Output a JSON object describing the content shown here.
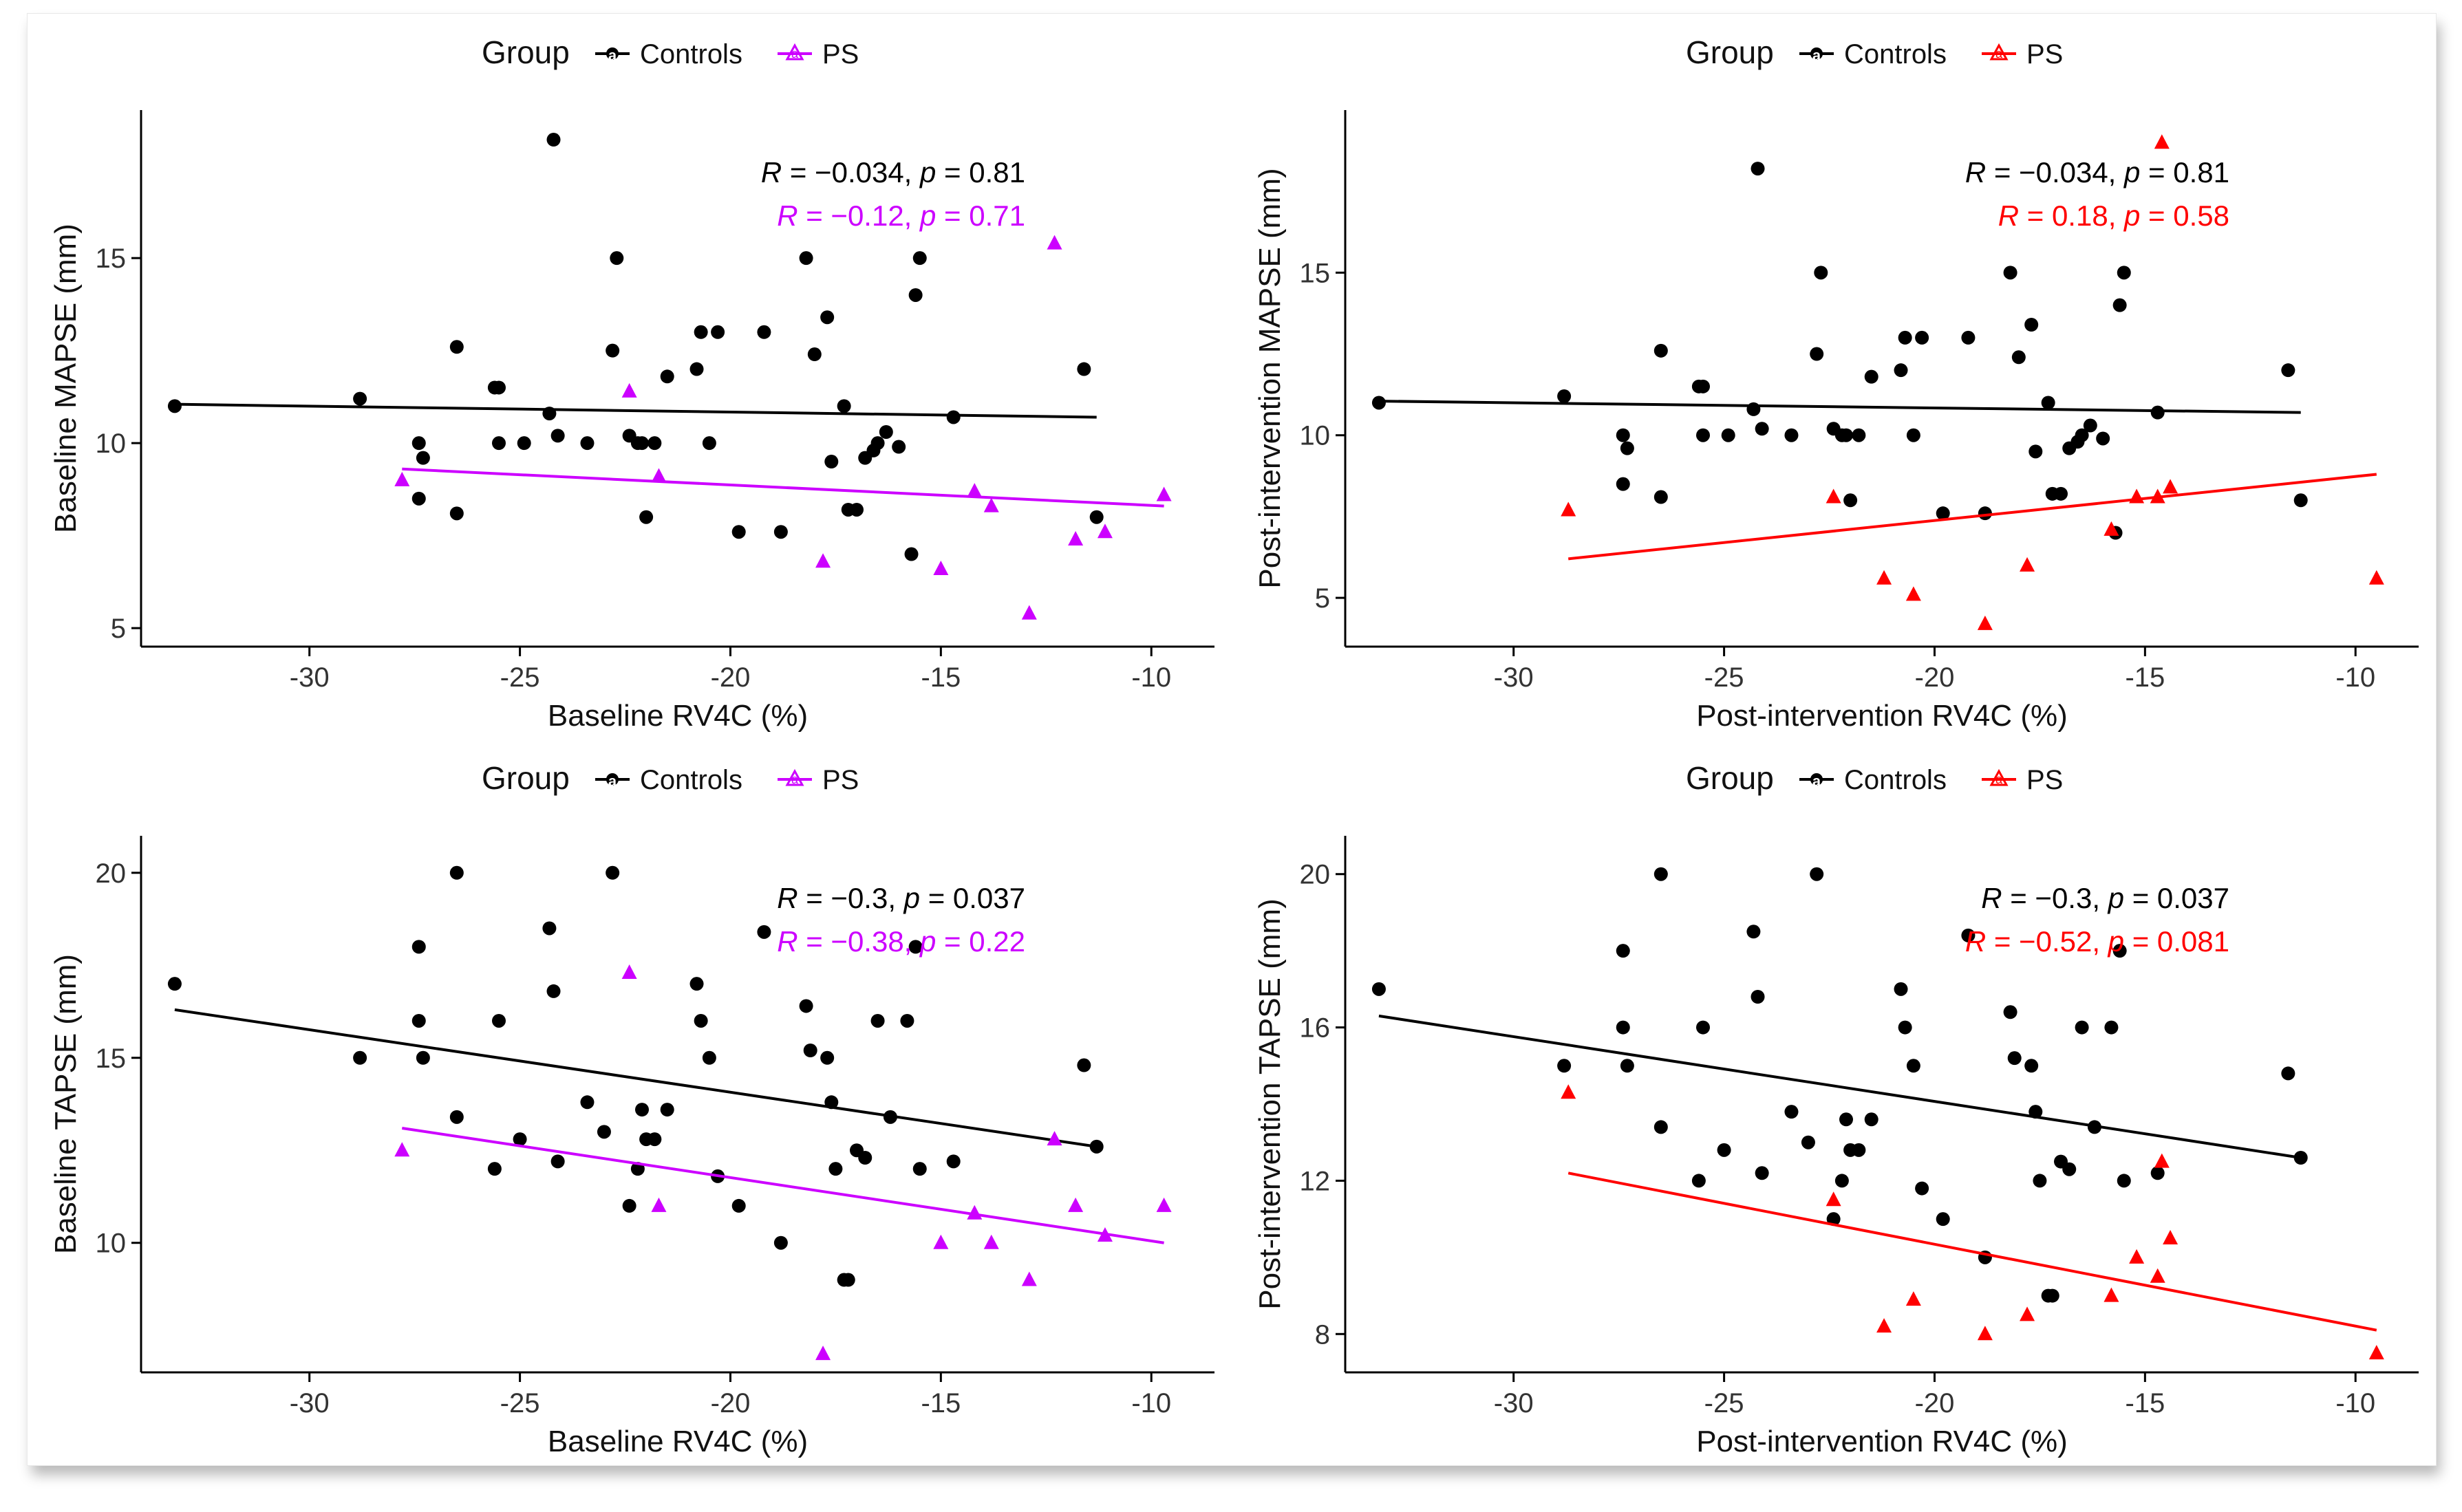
{
  "colors": {
    "controls": "#000000",
    "ps_baseline": "#cc00ff",
    "ps_post": "#ff0000"
  },
  "chart_data": [
    {
      "type": "scatter",
      "xlabel": "Baseline RV4C (%)",
      "ylabel": "Baseline MAPSE (mm)",
      "xlim": [
        -34,
        -8.5
      ],
      "ylim": [
        4.5,
        19
      ],
      "xticks": [
        -30,
        -25,
        -20,
        -15,
        -10
      ],
      "yticks": [
        5,
        10,
        15
      ],
      "legend": {
        "title": "Group",
        "entries": [
          "Controls",
          "PS"
        ],
        "position": "top"
      },
      "series": [
        {
          "name": "Controls",
          "color": "#000000",
          "marker": "circle",
          "x": [
            -33.2,
            -28.8,
            -27.4,
            -27.3,
            -27.4,
            -26.5,
            -26.5,
            -25.6,
            -25.5,
            -25.5,
            -24.9,
            -24.3,
            -24.2,
            -24.1,
            -23.4,
            -22.8,
            -22.7,
            -22.4,
            -22.2,
            -22.1,
            -22.0,
            -21.8,
            -21.5,
            -20.8,
            -20.7,
            -20.5,
            -20.3,
            -19.8,
            -19.2,
            -18.8,
            -18.2,
            -18.0,
            -17.7,
            -17.6,
            -17.3,
            -17.2,
            -17.0,
            -16.8,
            -16.6,
            -16.5,
            -16.3,
            -16.0,
            -15.7,
            -15.6,
            -15.5,
            -14.7,
            -11.6,
            -11.3
          ],
          "y": [
            11.0,
            11.2,
            10.0,
            9.6,
            8.5,
            12.6,
            8.1,
            11.5,
            11.5,
            10.0,
            10.0,
            10.8,
            18.2,
            10.2,
            10.0,
            12.5,
            15.0,
            10.2,
            10.0,
            10.0,
            8.0,
            10.0,
            11.8,
            12.0,
            13.0,
            10.0,
            13.0,
            7.6,
            13.0,
            7.6,
            15.0,
            12.4,
            13.4,
            9.5,
            11.0,
            8.2,
            8.2,
            9.6,
            9.8,
            10.0,
            10.3,
            9.9,
            7.0,
            14.0,
            15.0,
            10.7,
            12.0,
            8.0
          ],
          "fit": {
            "x": [
              -33.2,
              -11.3
            ],
            "y": [
              11.05,
              10.7
            ]
          }
        },
        {
          "name": "PS",
          "color": "#cc00ff",
          "marker": "triangle",
          "x": [
            -27.8,
            -22.4,
            -21.7,
            -17.8,
            -15.0,
            -14.2,
            -13.8,
            -12.9,
            -12.3,
            -11.8,
            -11.1,
            -9.7
          ],
          "y": [
            9.0,
            11.4,
            9.1,
            6.8,
            6.6,
            8.7,
            8.3,
            5.4,
            15.4,
            7.4,
            7.6,
            8.6
          ],
          "fit": {
            "x": [
              -27.8,
              -9.7
            ],
            "y": [
              9.3,
              8.3
            ]
          }
        }
      ],
      "annotations": [
        {
          "r": "−0.034",
          "p": "0.81",
          "color": "#000000"
        },
        {
          "r": "−0.12",
          "p": "0.71",
          "color": "#cc00ff"
        }
      ]
    },
    {
      "type": "scatter",
      "xlabel": "Post-intervention RV4C (%)",
      "ylabel": "Post-intervention MAPSE (mm)",
      "xlim": [
        -34,
        -8.5
      ],
      "ylim": [
        3.5,
        20
      ],
      "xticks": [
        -30,
        -25,
        -20,
        -15,
        -10
      ],
      "yticks": [
        5,
        10,
        15
      ],
      "legend": {
        "title": "Group",
        "entries": [
          "Controls",
          "PS"
        ],
        "position": "top"
      },
      "series": [
        {
          "name": "Controls",
          "color": "#000000",
          "marker": "circle",
          "x": [
            -33.2,
            -28.8,
            -27.4,
            -27.3,
            -27.4,
            -26.5,
            -26.5,
            -25.6,
            -25.5,
            -25.5,
            -24.9,
            -24.3,
            -24.2,
            -24.1,
            -23.4,
            -22.8,
            -22.7,
            -22.4,
            -22.2,
            -22.1,
            -22.0,
            -21.8,
            -21.5,
            -20.8,
            -20.7,
            -20.5,
            -20.3,
            -19.8,
            -19.2,
            -18.8,
            -18.2,
            -18.0,
            -17.7,
            -17.6,
            -17.3,
            -17.2,
            -17.0,
            -16.8,
            -16.6,
            -16.5,
            -16.3,
            -16.0,
            -15.7,
            -15.6,
            -15.5,
            -14.7,
            -11.6,
            -11.3
          ],
          "y": [
            11.0,
            11.2,
            10.0,
            9.6,
            8.5,
            12.6,
            8.1,
            11.5,
            11.5,
            10.0,
            10.0,
            10.8,
            18.2,
            10.2,
            10.0,
            12.5,
            15.0,
            10.2,
            10.0,
            10.0,
            8.0,
            10.0,
            11.8,
            12.0,
            13.0,
            10.0,
            13.0,
            7.6,
            13.0,
            7.6,
            15.0,
            12.4,
            13.4,
            9.5,
            11.0,
            8.2,
            8.2,
            9.6,
            9.8,
            10.0,
            10.3,
            9.9,
            7.0,
            14.0,
            15.0,
            10.7,
            12.0,
            8.0
          ],
          "fit": {
            "x": [
              -33.2,
              -11.3
            ],
            "y": [
              11.05,
              10.7
            ]
          }
        },
        {
          "name": "PS",
          "color": "#ff0000",
          "marker": "triangle",
          "x": [
            -28.7,
            -22.4,
            -21.2,
            -20.5,
            -18.8,
            -17.8,
            -15.8,
            -15.2,
            -14.7,
            -14.6,
            -14.4,
            -9.5
          ],
          "y": [
            7.7,
            8.1,
            5.6,
            5.1,
            4.2,
            6.0,
            7.1,
            8.1,
            8.1,
            19.0,
            8.4,
            5.6
          ],
          "fit": {
            "x": [
              -28.7,
              -9.5
            ],
            "y": [
              6.2,
              8.8
            ]
          }
        }
      ],
      "annotations": [
        {
          "r": "−0.034",
          "p": "0.81",
          "color": "#000000"
        },
        {
          "r": "0.18",
          "p": "0.58",
          "color": "#ff0000"
        }
      ]
    },
    {
      "type": "scatter",
      "xlabel": "Baseline RV4C (%)",
      "ylabel": "Baseline TAPSE (mm)",
      "xlim": [
        -34,
        -8.5
      ],
      "ylim": [
        6.5,
        21
      ],
      "xticks": [
        -30,
        -25,
        -20,
        -15,
        -10
      ],
      "yticks": [
        10,
        15,
        20
      ],
      "legend": {
        "title": "Group",
        "entries": [
          "Controls",
          "PS"
        ],
        "position": "top"
      },
      "series": [
        {
          "name": "Controls",
          "color": "#000000",
          "marker": "circle",
          "x": [
            -33.2,
            -28.8,
            -27.4,
            -27.4,
            -27.3,
            -26.5,
            -26.5,
            -25.6,
            -25.5,
            -25.0,
            -24.3,
            -24.2,
            -24.1,
            -23.4,
            -23.0,
            -22.8,
            -22.4,
            -22.2,
            -22.1,
            -22.0,
            -21.8,
            -21.5,
            -20.8,
            -20.7,
            -20.5,
            -20.3,
            -19.8,
            -19.2,
            -18.8,
            -18.2,
            -18.1,
            -17.7,
            -17.6,
            -17.5,
            -17.3,
            -17.2,
            -17.0,
            -16.8,
            -16.5,
            -16.2,
            -15.8,
            -15.5,
            -15.6,
            -14.7,
            -11.6,
            -11.3
          ],
          "y": [
            17.0,
            15.0,
            18.0,
            16.0,
            15.0,
            20.0,
            13.4,
            12.0,
            16.0,
            12.8,
            18.5,
            16.8,
            12.2,
            13.8,
            13.0,
            20.0,
            11.0,
            12.0,
            13.6,
            12.8,
            12.8,
            13.6,
            17.0,
            16.0,
            15.0,
            11.8,
            11.0,
            18.4,
            10.0,
            16.4,
            15.2,
            15.0,
            13.8,
            12.0,
            9.0,
            9.0,
            12.5,
            12.3,
            16.0,
            13.4,
            16.0,
            12.0,
            18.0,
            12.2,
            14.8,
            12.6
          ],
          "fit": {
            "x": [
              -33.2,
              -11.3
            ],
            "y": [
              16.3,
              12.6
            ]
          }
        },
        {
          "name": "PS",
          "color": "#cc00ff",
          "marker": "triangle",
          "x": [
            -27.8,
            -22.4,
            -21.7,
            -17.8,
            -15.0,
            -14.2,
            -13.8,
            -12.9,
            -12.3,
            -11.8,
            -11.1,
            -9.7
          ],
          "y": [
            12.5,
            17.3,
            11.0,
            7.0,
            10.0,
            10.8,
            10.0,
            9.0,
            12.8,
            11.0,
            10.2,
            11.0
          ],
          "fit": {
            "x": [
              -27.8,
              -9.7
            ],
            "y": [
              13.1,
              10.0
            ]
          }
        }
      ],
      "annotations": [
        {
          "r": "−0.3",
          "p": "0.037",
          "color": "#000000"
        },
        {
          "r": "−0.38",
          "p": "0.22",
          "color": "#cc00ff"
        }
      ]
    },
    {
      "type": "scatter",
      "xlabel": "Post-intervention RV4C (%)",
      "ylabel": "Post-intervention TAPSE (mm)",
      "xlim": [
        -34,
        -8.5
      ],
      "ylim": [
        7,
        21
      ],
      "xticks": [
        -30,
        -25,
        -20,
        -15,
        -10
      ],
      "yticks": [
        8,
        12,
        16,
        20
      ],
      "legend": {
        "title": "Group",
        "entries": [
          "Controls",
          "PS"
        ],
        "position": "top"
      },
      "series": [
        {
          "name": "Controls",
          "color": "#000000",
          "marker": "circle",
          "x": [
            -33.2,
            -28.8,
            -27.4,
            -27.4,
            -27.3,
            -26.5,
            -26.5,
            -25.6,
            -25.5,
            -25.0,
            -24.3,
            -24.2,
            -24.1,
            -23.4,
            -23.0,
            -22.8,
            -22.4,
            -22.2,
            -22.1,
            -22.0,
            -21.8,
            -21.5,
            -20.8,
            -20.7,
            -20.5,
            -20.3,
            -19.8,
            -19.2,
            -18.8,
            -18.2,
            -18.1,
            -17.7,
            -17.6,
            -17.5,
            -17.3,
            -17.2,
            -17.0,
            -16.8,
            -16.5,
            -16.2,
            -15.8,
            -15.5,
            -15.6,
            -14.7,
            -11.6,
            -11.3
          ],
          "y": [
            17.0,
            15.0,
            18.0,
            16.0,
            15.0,
            20.0,
            13.4,
            12.0,
            16.0,
            12.8,
            18.5,
            16.8,
            12.2,
            13.8,
            13.0,
            20.0,
            11.0,
            12.0,
            13.6,
            12.8,
            12.8,
            13.6,
            17.0,
            16.0,
            15.0,
            11.8,
            11.0,
            18.4,
            10.0,
            16.4,
            15.2,
            15.0,
            13.8,
            12.0,
            9.0,
            9.0,
            12.5,
            12.3,
            16.0,
            13.4,
            16.0,
            12.0,
            18.0,
            12.2,
            14.8,
            12.6
          ],
          "fit": {
            "x": [
              -33.2,
              -11.3
            ],
            "y": [
              16.3,
              12.6
            ]
          }
        },
        {
          "name": "PS",
          "color": "#ff0000",
          "marker": "triangle",
          "x": [
            -28.7,
            -22.4,
            -21.2,
            -20.5,
            -18.8,
            -17.8,
            -15.8,
            -15.2,
            -14.7,
            -14.6,
            -14.4,
            -9.5
          ],
          "y": [
            14.3,
            11.5,
            8.2,
            8.9,
            8.0,
            8.5,
            9.0,
            10.0,
            9.5,
            12.5,
            10.5,
            7.5
          ],
          "fit": {
            "x": [
              -28.7,
              -9.5
            ],
            "y": [
              12.2,
              8.1
            ]
          }
        }
      ],
      "annotations": [
        {
          "r": "−0.3",
          "p": "0.037",
          "color": "#000000"
        },
        {
          "r": "−0.52",
          "p": "0.081",
          "color": "#ff0000"
        }
      ]
    }
  ]
}
